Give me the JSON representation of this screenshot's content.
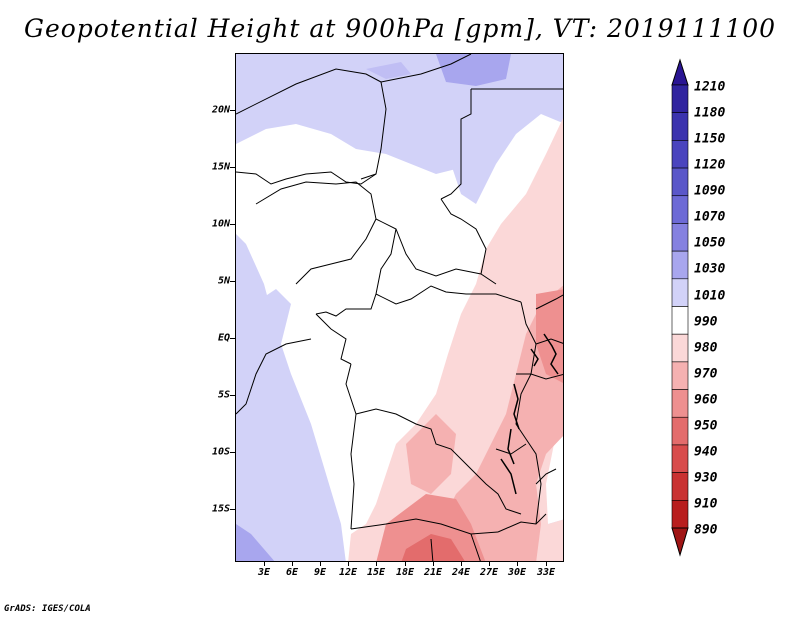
{
  "title": "Geopotential Height at 900hPa [gpm], VT: 2019111100",
  "footer": "GrADS: IGES/COLA",
  "variable": "Geopotential Height",
  "level": "900hPa",
  "units": "gpm",
  "valid_time": "2019111100",
  "lat_labels": [
    "20N",
    "15N",
    "10N",
    "5N",
    "EQ",
    "5S",
    "10S",
    "15S"
  ],
  "lon_labels": [
    "3E",
    "6E",
    "9E",
    "12E",
    "15E",
    "18E",
    "21E",
    "24E",
    "27E",
    "30E",
    "33E"
  ],
  "colorbar": {
    "labels": [
      "1210",
      "1180",
      "1150",
      "1120",
      "1090",
      "1070",
      "1050",
      "1030",
      "1010",
      "990",
      "980",
      "970",
      "960",
      "950",
      "940",
      "930",
      "910",
      "890"
    ],
    "colors": [
      "#2a1593",
      "#30249f",
      "#3b33ae",
      "#4a44be",
      "#5a57c9",
      "#6d6ad6",
      "#8581e0",
      "#a8a6ee",
      "#d2d2f8",
      "#ffffff",
      "#fbd8d8",
      "#f5b1b1",
      "#ee9090",
      "#e36c6c",
      "#d84c4c",
      "#c93232",
      "#b81e1e",
      "#a01515"
    ]
  }
}
